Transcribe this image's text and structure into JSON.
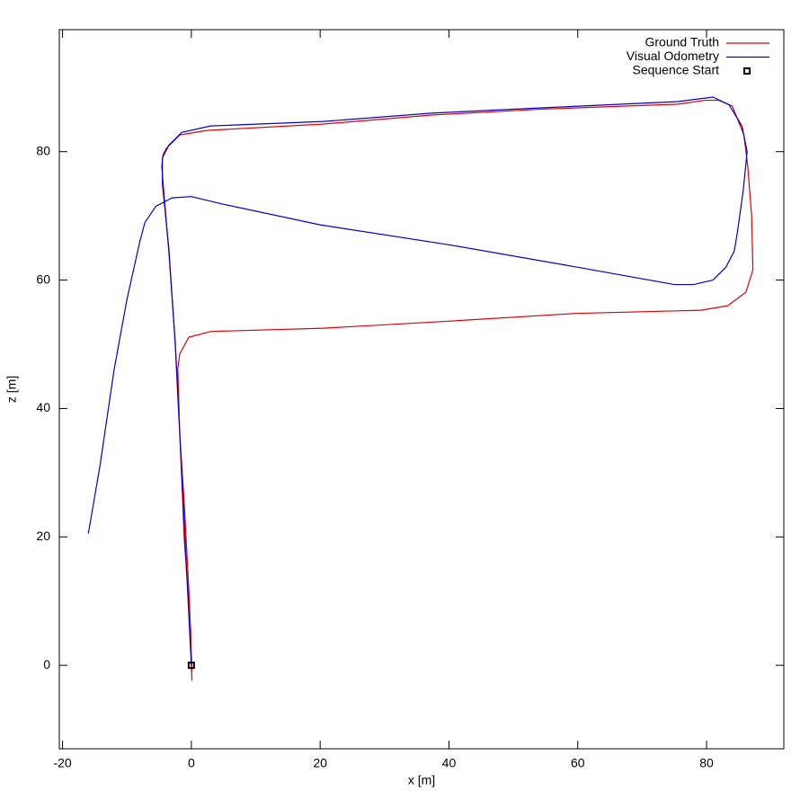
{
  "chart_data": {
    "type": "line",
    "xlabel": "x [m]",
    "ylabel": "z [m]",
    "xlim": [
      -20.5,
      92
    ],
    "ylim": [
      -13,
      99
    ],
    "xticks": [
      -20,
      0,
      20,
      40,
      60,
      80
    ],
    "yticks": [
      0,
      20,
      40,
      60,
      80
    ],
    "legend": "top-right",
    "series": [
      {
        "name": "Ground Truth",
        "color": "#e00000",
        "x": [
          0.1,
          0,
          -0.1,
          -1.1,
          -1.8,
          -2.5,
          -3.5,
          -4.3,
          -4.6,
          -4.4,
          -3.9,
          -1.8,
          2.4,
          20.5,
          37.3,
          54,
          75.6,
          79.8,
          81.9,
          84,
          85.8,
          86.4,
          87,
          87.2,
          86.1,
          83.3,
          79.1,
          59.6,
          40,
          20.5,
          3.1,
          -0.4,
          -1.8,
          -2.1,
          -1.8,
          -1.1,
          -0.3,
          0.1
        ],
        "values": [
          -2.4,
          0,
          5.6,
          19.6,
          36.4,
          50.4,
          64.4,
          74.2,
          77.7,
          79.5,
          80.5,
          82.6,
          83.3,
          84.3,
          85.7,
          86.6,
          87.4,
          88,
          88,
          87.1,
          82.6,
          77.7,
          70,
          61.6,
          58.1,
          56,
          55.3,
          54.8,
          53.6,
          52.5,
          52,
          51.1,
          48.5,
          46.2,
          36,
          25.2,
          10,
          -1
        ]
      },
      {
        "name": "Visual Odometry",
        "color": "#0000d0",
        "x": [
          0,
          -0.5,
          -1.5,
          -2.5,
          -3.5,
          -4.5,
          -4.5,
          -3.5,
          -1.5,
          3,
          20.5,
          37.3,
          54,
          75.6,
          81,
          83.5,
          85.5,
          86.3,
          85.7,
          84.8,
          84.3,
          83,
          81,
          78,
          75,
          60,
          40,
          20,
          5,
          0,
          -3,
          -5.5,
          -7.2,
          -8,
          -10,
          -12,
          -14.2,
          -16
        ],
        "values": [
          0,
          10,
          30,
          50,
          65,
          75,
          79,
          81,
          83,
          84,
          84.7,
          86,
          86.8,
          87.8,
          88.5,
          87.3,
          84,
          80,
          74,
          67.5,
          64.5,
          62,
          60,
          59.3,
          59.3,
          62,
          65.5,
          68.6,
          71.8,
          73,
          72.8,
          71.5,
          69,
          66,
          57,
          46,
          31,
          20.5
        ]
      },
      {
        "name": "Sequence Start",
        "color": "#000000",
        "marker": "square",
        "x": [
          0
        ],
        "values": [
          0
        ]
      }
    ]
  }
}
